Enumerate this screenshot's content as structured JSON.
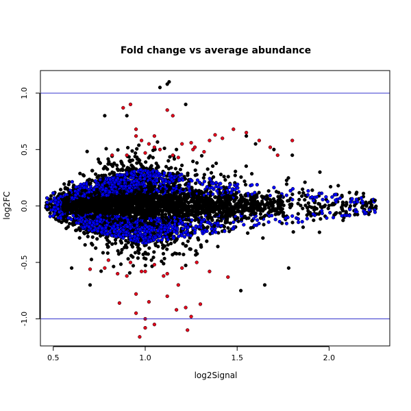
{
  "chart_data": {
    "type": "scatter",
    "title": "Fold change vs average abundance",
    "xlabel": "log2Signal",
    "ylabel": "log2FC",
    "xlim": [
      0.43,
      2.33
    ],
    "ylim": [
      -1.24,
      1.2
    ],
    "xticks": [
      "0.5",
      "1.0",
      "1.5",
      "2.0"
    ],
    "xtick_values": [
      0.5,
      1.0,
      1.5,
      2.0
    ],
    "yticks": [
      "-1.0",
      "-0.5",
      "0.0",
      "0.5",
      "1.0"
    ],
    "ytick_values": [
      -1.0,
      -0.5,
      0.0,
      0.5,
      1.0
    ],
    "hlines": [
      1.0,
      -1.0
    ],
    "hline_color": "#3333cc",
    "grid": false,
    "legend": "none",
    "colors": {
      "black_group": "#000000",
      "blue_group": "#0000ff",
      "red_group": "#e3001b"
    },
    "series": [
      {
        "color": "#e3001b",
        "x": [
          0.88,
          0.92,
          0.95,
          0.98,
          1.02,
          1.05,
          1.12,
          1.15,
          1.2,
          1.27,
          1.32,
          1.38,
          1.42,
          0.9,
          1.0,
          1.08,
          1.18,
          1.26,
          1.35,
          1.48,
          1.55,
          1.62,
          1.68,
          1.72,
          1.8,
          0.82,
          0.95,
          1.05,
          1.15,
          1.25,
          0.78,
          0.85,
          0.9,
          0.98,
          1.05,
          1.12,
          1.2,
          1.28,
          1.35,
          1.45,
          0.7,
          0.8,
          0.92,
          1.0,
          1.1,
          1.18,
          0.86,
          0.95,
          1.02,
          1.12,
          1.22,
          1.3,
          0.95,
          1.0,
          1.05,
          1.17,
          1.25,
          0.97,
          1.0,
          1.23
        ],
        "y": [
          0.87,
          0.9,
          0.62,
          0.58,
          0.55,
          0.62,
          0.85,
          0.8,
          0.55,
          0.52,
          0.48,
          0.63,
          0.6,
          0.45,
          0.47,
          0.5,
          0.43,
          0.5,
          0.58,
          0.68,
          0.65,
          0.58,
          0.52,
          0.45,
          0.58,
          0.45,
          0.68,
          0.52,
          0.45,
          0.56,
          -0.55,
          -0.6,
          -0.62,
          -0.58,
          -0.52,
          -0.6,
          -0.55,
          -0.5,
          -0.58,
          -0.63,
          -0.56,
          -0.48,
          -0.5,
          -0.58,
          -0.62,
          -0.7,
          -0.86,
          -0.78,
          -0.85,
          -0.8,
          -0.9,
          -0.87,
          -0.95,
          -1.0,
          -1.05,
          -0.92,
          -0.98,
          -1.16,
          -1.08,
          -1.1
        ]
      },
      {
        "color": "#000000",
        "x": [
          0.9,
          1.08,
          1.12,
          1.13,
          1.22,
          0.78,
          1.55,
          1.6,
          1.7,
          1.8,
          1.95,
          2.05,
          2.15,
          2.25,
          0.6,
          0.7,
          1.65,
          1.78,
          1.52
        ],
        "y": [
          0.8,
          1.05,
          1.08,
          1.1,
          0.9,
          0.8,
          0.62,
          0.55,
          0.5,
          0.45,
          0.3,
          0.18,
          0.12,
          0.05,
          -0.55,
          -0.7,
          -0.7,
          -0.55,
          -0.75
        ]
      }
    ]
  }
}
